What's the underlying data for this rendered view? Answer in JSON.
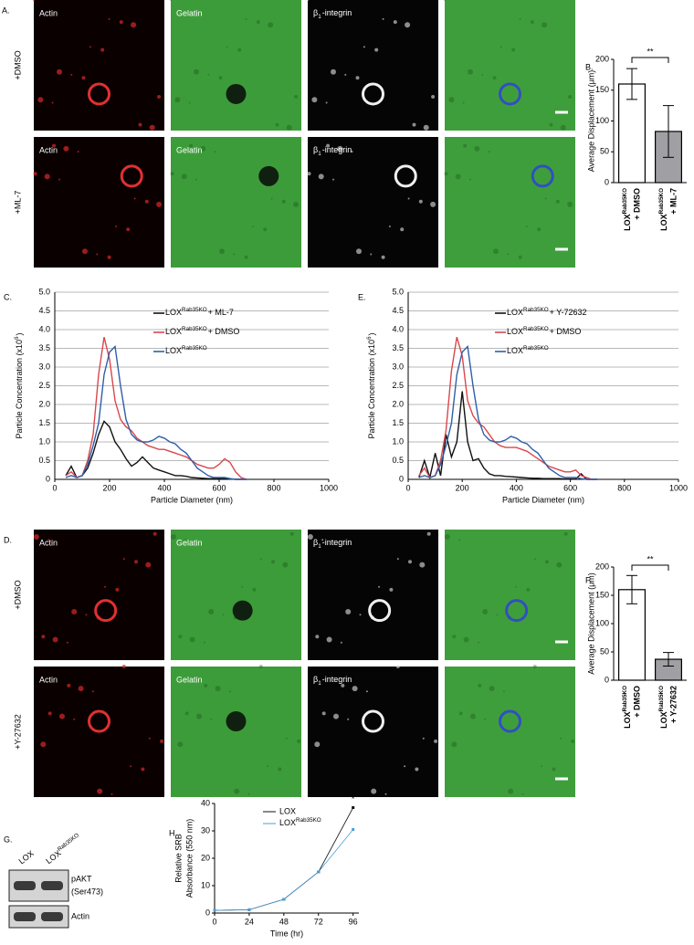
{
  "micrographs": [
    {
      "panel_label": "A.",
      "columns": [
        "Actin",
        "Gelatin",
        {
          "base": "β",
          "sub": "1",
          "suffix": "-integrin"
        }
      ],
      "rows": [
        "+DMSO",
        "+ML-7"
      ]
    },
    {
      "panel_label": "D.",
      "columns": [
        "Actin",
        "Gelatin",
        {
          "base": "β",
          "sub": "1",
          "suffix": "-integrin"
        }
      ],
      "rows": [
        "+DMSO",
        "+Y-27632"
      ]
    }
  ],
  "blot": {
    "panel_label": "G.",
    "lanes": [
      "LOX",
      {
        "base": "LOX",
        "sup": "Rab35KO"
      }
    ],
    "bands": [
      [
        "pAKT",
        "(Ser473)"
      ],
      [
        "Actin"
      ]
    ]
  },
  "chart_data": [
    {
      "type": "bar",
      "panel_label": "B.",
      "ylabel": [
        "Average Displacement (μm)"
      ],
      "categories": [
        {
          "base": "LOX",
          "sup": "Rab35KO",
          "suffix": "+ DMSO"
        },
        {
          "base": "LOX",
          "sup": "Rab35KO",
          "suffix": "+ ML-7"
        }
      ],
      "values": [
        160,
        83
      ],
      "errors": [
        25,
        42
      ],
      "colors": [
        "#ffffff",
        "#a0a0a4"
      ],
      "ylim": [
        0,
        200
      ],
      "yticks": [
        0,
        50,
        100,
        150,
        200
      ],
      "annotation": "**"
    },
    {
      "type": "line",
      "panel_label": "C.",
      "ylabel": [
        {
          "base": "Particle Concentration (x10",
          "sup": "6",
          "suffix": ")"
        }
      ],
      "xlabel": "Particle Diameter (nm)",
      "grid": true,
      "xlim": [
        0,
        1000
      ],
      "xticks": [
        0,
        200,
        400,
        600,
        800,
        1000
      ],
      "ylim": [
        0,
        5
      ],
      "yticks": [
        0,
        0.5,
        {
          "value": 1,
          "label": "1.0"
        },
        1.5,
        {
          "value": 2,
          "label": "2.0"
        },
        2.5,
        {
          "value": 3,
          "label": "3.0"
        },
        3.5,
        {
          "value": 4,
          "label": "4.0"
        },
        4.5,
        {
          "value": 5,
          "label": "5.0"
        }
      ],
      "x": [
        40,
        60,
        80,
        100,
        120,
        140,
        160,
        180,
        200,
        220,
        240,
        260,
        280,
        300,
        320,
        340,
        360,
        380,
        400,
        420,
        440,
        460,
        480,
        500,
        520,
        540,
        560,
        580,
        600,
        620,
        640,
        660,
        680,
        700
      ],
      "series": [
        {
          "label": {
            "base": "LOX",
            "sup": "Rab35KO",
            "suffix": "+ ML-7"
          },
          "color": "#111111",
          "values": [
            0.1,
            0.35,
            0.05,
            0.1,
            0.3,
            0.7,
            1.2,
            1.55,
            1.4,
            1.0,
            0.8,
            0.55,
            0.35,
            0.45,
            0.6,
            0.45,
            0.3,
            0.25,
            0.2,
            0.15,
            0.1,
            0.1,
            0.08,
            0.05,
            0.04,
            0.03,
            0.02,
            0.02,
            0.02,
            0.02,
            0.01,
            0,
            0,
            0
          ]
        },
        {
          "label": {
            "base": "LOX",
            "sup": "Rab35KO",
            "suffix": "+ DMSO"
          },
          "color": "#d9474c",
          "values": [
            0.1,
            0.2,
            0.05,
            0.1,
            0.5,
            1.2,
            2.8,
            3.8,
            3.2,
            2.1,
            1.6,
            1.4,
            1.3,
            1.1,
            1.0,
            0.9,
            0.85,
            0.8,
            0.8,
            0.75,
            0.7,
            0.65,
            0.6,
            0.5,
            0.4,
            0.35,
            0.3,
            0.3,
            0.4,
            0.55,
            0.45,
            0.2,
            0.05,
            0
          ]
        },
        {
          "label": {
            "base": "LOX",
            "sup": "Rab35KO"
          },
          "color": "#2f5fa8",
          "values": [
            0.05,
            0.1,
            0.05,
            0.1,
            0.4,
            0.9,
            1.5,
            2.8,
            3.4,
            3.55,
            2.5,
            1.6,
            1.2,
            1.05,
            1.0,
            1.0,
            1.05,
            1.15,
            1.1,
            1.0,
            0.95,
            0.8,
            0.7,
            0.5,
            0.3,
            0.2,
            0.1,
            0.05,
            0.05,
            0.05,
            0.02,
            0,
            0,
            0
          ]
        }
      ]
    },
    {
      "type": "line",
      "panel_label": "E.",
      "ylabel": [
        {
          "base": "Particle Concentration (x10",
          "sup": "6",
          "suffix": ")"
        }
      ],
      "xlabel": "Particle Diameter (nm)",
      "grid": true,
      "xlim": [
        0,
        1000
      ],
      "xticks": [
        0,
        200,
        400,
        600,
        800,
        1000
      ],
      "ylim": [
        0,
        5
      ],
      "yticks": [
        0,
        0.5,
        {
          "value": 1,
          "label": "1.0"
        },
        1.5,
        {
          "value": 2,
          "label": "2.0"
        },
        2.5,
        {
          "value": 3,
          "label": "3.0"
        },
        3.5,
        {
          "value": 4,
          "label": "4.0"
        },
        4.5,
        {
          "value": 5,
          "label": "5.0"
        }
      ],
      "x": [
        40,
        60,
        80,
        100,
        120,
        140,
        160,
        180,
        200,
        220,
        240,
        260,
        280,
        300,
        320,
        340,
        360,
        380,
        400,
        420,
        440,
        460,
        480,
        500,
        520,
        540,
        560,
        580,
        600,
        620,
        640,
        660,
        680,
        700
      ],
      "series": [
        {
          "label": {
            "base": "LOX",
            "sup": "Rab35KO",
            "suffix": "+ Y-72632"
          },
          "color": "#111111",
          "values": [
            0.05,
            0.5,
            0.05,
            0.7,
            0.1,
            1.2,
            0.6,
            1.0,
            2.35,
            1.0,
            0.5,
            0.55,
            0.3,
            0.15,
            0.1,
            0.1,
            0.08,
            0.07,
            0.06,
            0.05,
            0.04,
            0.03,
            0.03,
            0.02,
            0.02,
            0.02,
            0.02,
            0.01,
            0.01,
            0.01,
            0.15,
            0,
            0,
            0
          ]
        },
        {
          "label": {
            "base": "LOX",
            "sup": "Rab35KO",
            "suffix": "+ DMSO"
          },
          "color": "#d9474c",
          "values": [
            0.1,
            0.3,
            0.05,
            0.1,
            0.5,
            1.3,
            2.9,
            3.8,
            3.3,
            2.1,
            1.7,
            1.5,
            1.4,
            1.2,
            1.0,
            0.9,
            0.85,
            0.85,
            0.85,
            0.8,
            0.75,
            0.65,
            0.55,
            0.45,
            0.35,
            0.3,
            0.25,
            0.2,
            0.2,
            0.25,
            0.1,
            0.05,
            0,
            0
          ]
        },
        {
          "label": {
            "base": "LOX",
            "sup": "Rab35KO"
          },
          "color": "#2f5fa8",
          "values": [
            0.05,
            0.1,
            0.05,
            0.1,
            0.4,
            0.9,
            1.5,
            2.8,
            3.4,
            3.55,
            2.5,
            1.6,
            1.2,
            1.05,
            1.0,
            1.0,
            1.05,
            1.15,
            1.1,
            1.0,
            0.95,
            0.8,
            0.7,
            0.5,
            0.3,
            0.2,
            0.1,
            0.05,
            0.05,
            0.05,
            0.02,
            0,
            0,
            0
          ]
        }
      ]
    },
    {
      "type": "bar",
      "panel_label": "F.",
      "ylabel": [
        "Average Displacement (μm)"
      ],
      "categories": [
        {
          "base": "LOX",
          "sup": "Rab35KO",
          "suffix": "+ DMSO"
        },
        {
          "base": "LOX",
          "sup": "Rab35KO",
          "suffix": "+ Y-27632"
        }
      ],
      "values": [
        160,
        37
      ],
      "errors": [
        25,
        12
      ],
      "colors": [
        "#ffffff",
        "#a0a0a4"
      ],
      "ylim": [
        0,
        200
      ],
      "yticks": [
        0,
        50,
        100,
        150,
        200
      ],
      "annotation": "**"
    },
    {
      "type": "line",
      "panel_label": "H.",
      "ylabel": [
        "Relative SRB",
        "Absorbance (550 nm)"
      ],
      "xlabel": "Time (hr)",
      "markers": true,
      "xlim": [
        0,
        100
      ],
      "xticks": [
        0,
        24,
        48,
        72,
        96
      ],
      "ylim": [
        0,
        40
      ],
      "yticks": [
        0,
        10,
        20,
        30,
        40
      ],
      "x": [
        0,
        24,
        48,
        72,
        96
      ],
      "annotation": "*",
      "series": [
        {
          "label": "LOX",
          "color": "#111111",
          "values": [
            1,
            1.2,
            5,
            15,
            38.5
          ]
        },
        {
          "label": {
            "base": "LOX",
            "sup": "Rab35KO"
          },
          "color": "#4a9fd6",
          "values": [
            1,
            1.2,
            5,
            15,
            30.5
          ]
        }
      ]
    }
  ]
}
